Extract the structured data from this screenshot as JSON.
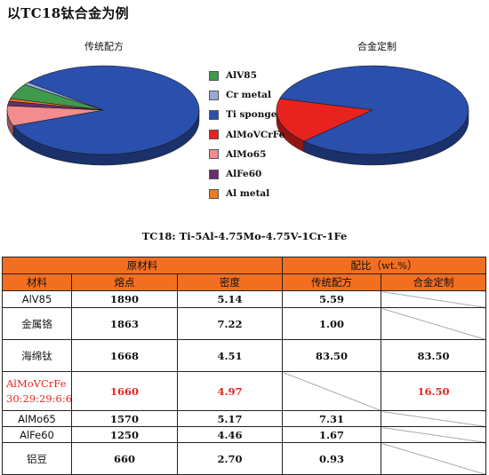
{
  "title": "以TC18钛合金为例",
  "pies": {
    "left": {
      "title": "传统配方"
    },
    "right": {
      "title": "合金定制"
    }
  },
  "legend": [
    {
      "label": "AlV85",
      "color": "#3f9a4e"
    },
    {
      "label": "Cr metal",
      "color": "#9aa7da"
    },
    {
      "label": "Ti sponge",
      "color": "#2a4fad"
    },
    {
      "label": "AlMoVCrFe",
      "color": "#e8231f"
    },
    {
      "label": "AlMo65",
      "color": "#f28c8f"
    },
    {
      "label": "AlFe60",
      "color": "#6b2d6f"
    },
    {
      "label": "Al metal",
      "color": "#f07a1f"
    }
  ],
  "formula": "TC18: Ti-5Al-4.75Mo-4.75V-1Cr-1Fe",
  "chart_data": [
    {
      "type": "pie",
      "title": "传统配方",
      "labels": [
        "AlV85",
        "Cr metal",
        "Ti sponge",
        "AlMoVCrFe",
        "AlMo65",
        "AlFe60",
        "Al metal"
      ],
      "values": [
        5.59,
        1.0,
        83.5,
        0,
        7.31,
        1.67,
        0.93
      ]
    },
    {
      "type": "pie",
      "title": "合金定制",
      "labels": [
        "AlV85",
        "Cr metal",
        "Ti sponge",
        "AlMoVCrFe",
        "AlMo65",
        "AlFe60",
        "Al metal"
      ],
      "values": [
        0,
        0,
        83.5,
        16.5,
        0,
        0,
        0
      ]
    },
    {
      "type": "table",
      "group_headers": [
        "原材料",
        "配比（wt.%）"
      ],
      "columns": [
        "材料",
        "熔点",
        "密度",
        "传统配方",
        "合金定制"
      ],
      "rows": [
        {
          "name": "AlV85",
          "melting": "1890",
          "density": "5.14",
          "traditional": "5.59",
          "custom": ""
        },
        {
          "name": "金属铬",
          "melting": "1863",
          "density": "7.22",
          "traditional": "1.00",
          "custom": ""
        },
        {
          "name": "海绵钛",
          "melting": "1668",
          "density": "4.51",
          "traditional": "83.50",
          "custom": "83.50"
        },
        {
          "name": "AlMoVCrFe",
          "name_line2": "30:29:29:6:6",
          "melting": "1660",
          "density": "4.97",
          "traditional": "",
          "custom": "16.50",
          "highlight": "#e8231f"
        },
        {
          "name": "AlMo65",
          "melting": "1570",
          "density": "5.17",
          "traditional": "7.31",
          "custom": ""
        },
        {
          "name": "AlFe60",
          "melting": "1250",
          "density": "4.46",
          "traditional": "1.67",
          "custom": ""
        },
        {
          "name": "铝豆",
          "melting": "660",
          "density": "2.70",
          "traditional": "0.93",
          "custom": ""
        }
      ]
    }
  ]
}
